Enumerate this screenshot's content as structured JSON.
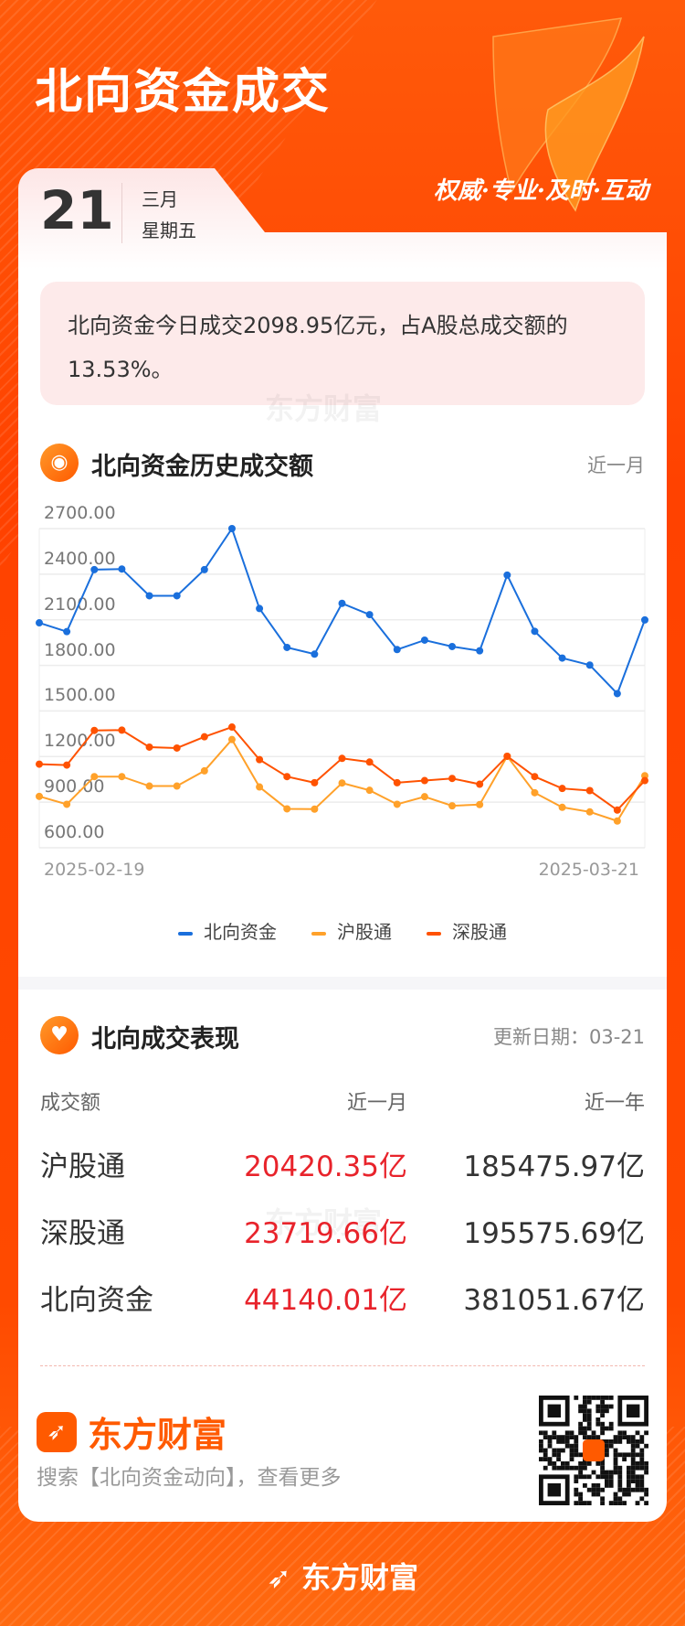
{
  "header": {
    "title": "北向资金成交",
    "slogan": "权威·专业·及时·互动"
  },
  "date": {
    "day": "21",
    "month": "三月",
    "weekday": "星期五"
  },
  "summary": {
    "text": "北向资金今日成交2098.95亿元，占A股总成交额的13.53%。"
  },
  "watermark": "东方财富",
  "history": {
    "title": "北向资金历史成交额",
    "range": "近一月",
    "icon": "currency-coin-icon"
  },
  "chart_data": {
    "type": "line",
    "x_labels": [
      "2025-02-19",
      "2025-03-21"
    ],
    "y_ticks": [
      "2700.00",
      "2400.00",
      "2100.00",
      "1800.00",
      "1500.00",
      "1200.00",
      "900.00",
      "600.00"
    ],
    "ylim": [
      600,
      2700
    ],
    "grid": true,
    "legend_position": "bottom",
    "series": [
      {
        "name": "北向资金",
        "color": "#1a6fdc",
        "values": [
          2080,
          2022,
          2430,
          2434,
          2258,
          2258,
          2430,
          2700,
          2174,
          1918,
          1874,
          2208,
          2134,
          1904,
          1966,
          1924,
          1896,
          2394,
          2024,
          1848,
          1802,
          1614,
          2099
        ]
      },
      {
        "name": "沪股通",
        "color": "#ffa12a",
        "values": [
          938,
          886,
          1068,
          1068,
          1006,
          1006,
          1106,
          1312,
          1000,
          856,
          854,
          1026,
          978,
          886,
          936,
          876,
          884,
          1202,
          962,
          866,
          836,
          776,
          1074
        ]
      },
      {
        "name": "深股通",
        "color": "#ff5200",
        "values": [
          1150,
          1144,
          1372,
          1374,
          1262,
          1256,
          1330,
          1394,
          1180,
          1068,
          1028,
          1188,
          1164,
          1028,
          1042,
          1056,
          1018,
          1202,
          1068,
          990,
          976,
          848,
          1042
        ]
      }
    ]
  },
  "performance": {
    "title": "北向成交表现",
    "icon": "handshake-heart-icon",
    "updated": "更新日期：03-21",
    "columns": [
      "成交额",
      "近一月",
      "近一年"
    ],
    "rows": [
      {
        "name": "沪股通",
        "month": "20420.35亿",
        "year": "185475.97亿"
      },
      {
        "name": "深股通",
        "month": "23719.66亿",
        "year": "195575.69亿"
      },
      {
        "name": "北向资金",
        "month": "44140.01亿",
        "year": "381051.67亿"
      }
    ]
  },
  "footer": {
    "brand": "东方财富",
    "search_hint": "搜索【北向资金动向】，查看更多",
    "bottom_brand": "东方财富"
  },
  "colors": {
    "accent": "#ff4a00",
    "up": "#e8232b"
  }
}
